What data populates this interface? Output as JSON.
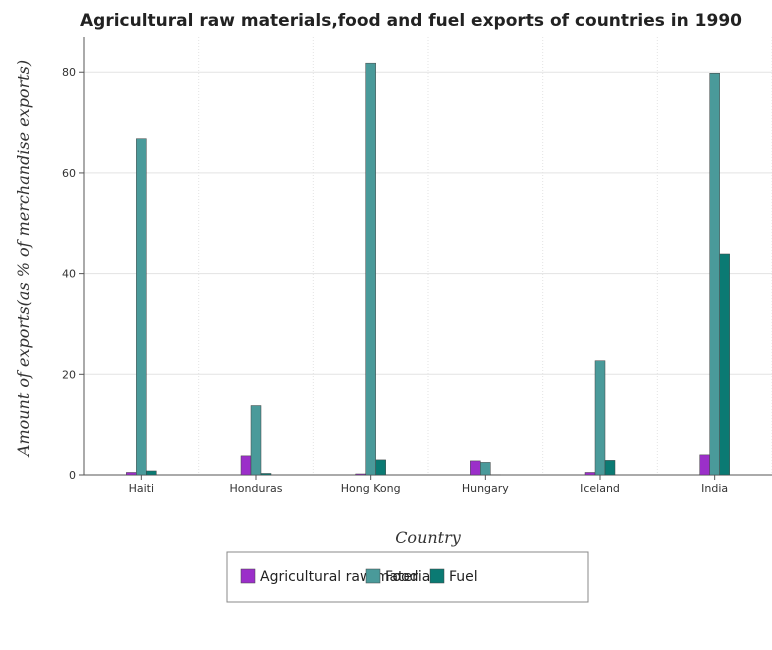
{
  "chart_data": {
    "type": "bar",
    "title": "Agricultural raw materials,food and fuel exports of countries in 1990",
    "xlabel": "Country",
    "ylabel": "Amount of exports(as % of merchandise exports)",
    "categories": [
      "Haiti",
      "Honduras",
      "Hong Kong",
      "Hungary",
      "Iceland",
      "India"
    ],
    "ylim": [
      0,
      87
    ],
    "yticks": [
      0,
      20,
      40,
      60,
      80
    ],
    "grid": true,
    "legend_position": "bottom",
    "series": [
      {
        "name": "Agricultural raw materials",
        "color": "#9b2fc9",
        "values": [
          0.5,
          3.8,
          0.2,
          2.8,
          0.5,
          4.0
        ]
      },
      {
        "name": "Food",
        "color": "#4a9a9a",
        "values": [
          66.8,
          13.8,
          81.8,
          2.5,
          22.7,
          79.8
        ]
      },
      {
        "name": "Fuel",
        "color": "#0b7a73",
        "values": [
          0.8,
          0.3,
          3.0,
          0.05,
          2.9,
          43.9
        ]
      }
    ]
  }
}
